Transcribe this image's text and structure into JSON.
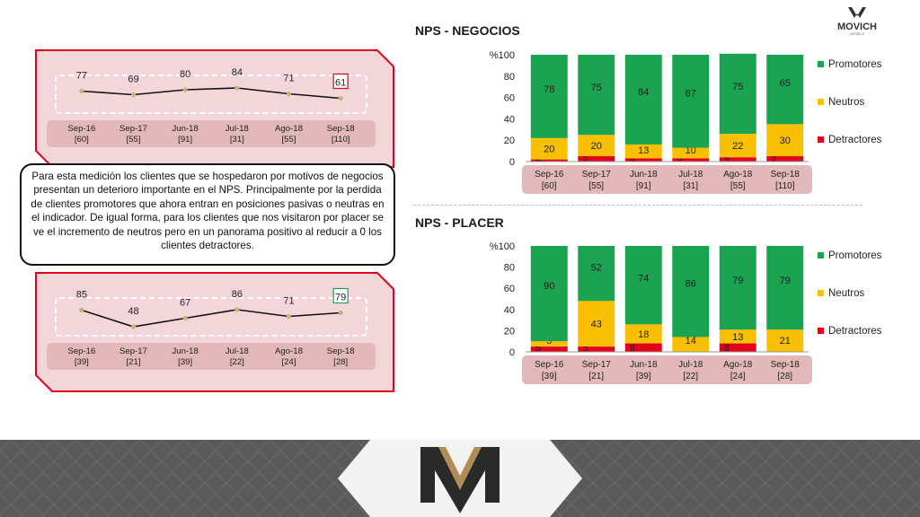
{
  "brand": {
    "name": "MOVICH",
    "sub": "HOTELS"
  },
  "note": "Para esta medición los clientes que se hospedaron por motivos de negocios presentan un deterioro importante en el NPS. Principalmente por la perdida de clientes promotores que ahora entran en posiciones pasivas o neutras en el indicador. De igual forma, para los clientes que nos visitaron por placer se ve el incremento de neutros pero en un panorama positivo al reducir a 0 los clientes detractores.",
  "colors": {
    "promotores": "#1aa350",
    "neutros": "#f8c000",
    "detractores": "#e3001b",
    "panel_fill": "#f3d6d9",
    "panel_border": "#e3001b",
    "axis_band": "#e2b8ba"
  },
  "chart_data": [
    {
      "type": "line",
      "categories": [
        "Sep-16",
        "Sep-17",
        "Jun-18",
        "Jul-18",
        "Ago-18",
        "Sep-18"
      ],
      "samples": [
        "[60]",
        "[55]",
        "[91]",
        "[31]",
        "[55]",
        "[110]"
      ],
      "values": [
        77,
        69,
        80,
        84,
        71,
        61
      ],
      "highlight_last_color": "#e3001b",
      "ylim": [
        40,
        100
      ]
    },
    {
      "type": "line",
      "categories": [
        "Sep-16",
        "Sep-17",
        "Jun-18",
        "Jul-18",
        "Ago-18",
        "Sep-18"
      ],
      "samples": [
        "[39]",
        "[21]",
        "[39]",
        "[22]",
        "[24]",
        "[28]"
      ],
      "values": [
        85,
        48,
        67,
        86,
        71,
        79
      ],
      "highlight_last_color": "#1aa350",
      "ylim": [
        40,
        100
      ]
    },
    {
      "type": "bar",
      "stacked": true,
      "title": "NPS - NEGOCIOS",
      "categories": [
        "Sep-16",
        "Sep-17",
        "Jun-18",
        "Jul-18",
        "Ago-18",
        "Sep-18"
      ],
      "samples": [
        "[60]",
        "[55]",
        "[91]",
        "[31]",
        "[55]",
        "[110]"
      ],
      "ylabel": "%",
      "ylim": [
        0,
        100
      ],
      "yticks": [
        0,
        20,
        40,
        60,
        80,
        100
      ],
      "legend_position": "right",
      "series": [
        {
          "name": "Detractores",
          "values": [
            2,
            5,
            3,
            3,
            4,
            5
          ],
          "labels": [
            "2",
            "5",
            "3",
            "3",
            "4",
            "5"
          ]
        },
        {
          "name": "Neutros",
          "values": [
            20,
            20,
            13,
            10,
            22,
            30
          ],
          "labels": [
            "20",
            "20",
            "13",
            "10",
            "22",
            "30"
          ]
        },
        {
          "name": "Promotores",
          "values": [
            78,
            75,
            84,
            87,
            75,
            65
          ],
          "labels": [
            "78",
            "75",
            "84",
            "87",
            "75",
            "65"
          ]
        }
      ]
    },
    {
      "type": "bar",
      "stacked": true,
      "title": "NPS - PLACER",
      "categories": [
        "Sep-16",
        "Sep-17",
        "Jun-18",
        "Jul-18",
        "Ago-18",
        "Sep-18"
      ],
      "samples": [
        "[39]",
        "[21]",
        "[39]",
        "[22]",
        "[24]",
        "[28]"
      ],
      "ylabel": "%",
      "ylim": [
        0,
        100
      ],
      "yticks": [
        0,
        20,
        40,
        60,
        80,
        100
      ],
      "legend_position": "right",
      "series": [
        {
          "name": "Detractores",
          "values": [
            5,
            5,
            8,
            0,
            8,
            0
          ],
          "labels": [
            "5",
            "5",
            "8",
            "",
            "8",
            ""
          ]
        },
        {
          "name": "Neutros",
          "values": [
            5,
            43,
            18,
            14,
            13,
            21
          ],
          "labels": [
            "5",
            "43",
            "18",
            "14",
            "13",
            "21"
          ]
        },
        {
          "name": "Promotores",
          "values": [
            90,
            52,
            74,
            86,
            79,
            79
          ],
          "labels": [
            "90",
            "52",
            "74",
            "86",
            "79",
            "79"
          ]
        }
      ]
    }
  ]
}
